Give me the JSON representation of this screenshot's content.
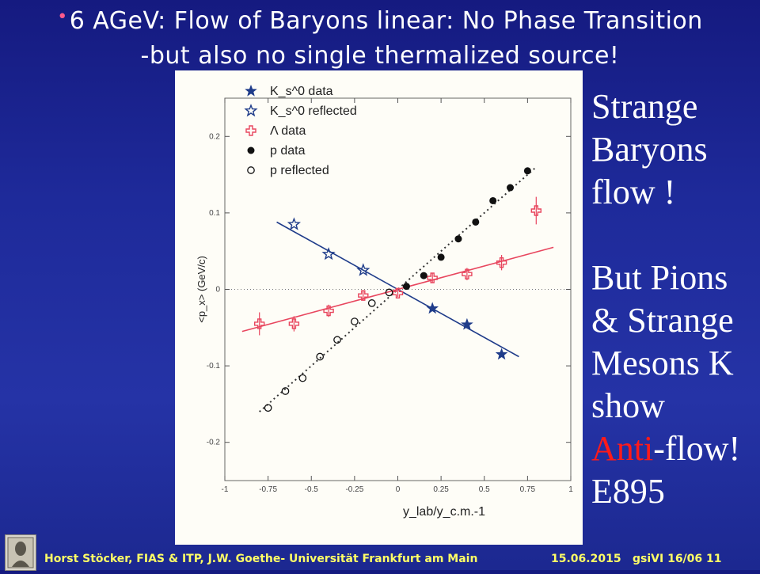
{
  "title": {
    "line1": "6 AGeV: Flow of Baryons linear: No Phase Transition",
    "line2": "-but also no single thermalized source!"
  },
  "side_text": {
    "l1": "Strange",
    "l2": "Baryons",
    "l3": "flow !",
    "l4": "But Pions",
    "l5": "& Strange",
    "l6": "Mesons K",
    "l7": "show",
    "l8_red": "Anti",
    "l8_rest": "-flow!",
    "l9": "E895"
  },
  "footer": {
    "author": "Horst Stöcker, FIAS & ITP, J.W. Goethe- Universität Frankfurt am Main",
    "date": "15.06.2015",
    "slide": "gsiVI 16/06  11"
  },
  "icons": {
    "logo": "goethe-portrait-icon",
    "bullet": "bullet-dot"
  },
  "colors": {
    "K0": "#1f3c8a",
    "Lambda": "#e8465e",
    "p": "#111111",
    "fit_p": "#333333"
  },
  "chart_data": {
    "type": "scatter",
    "xlabel": "y_lab/y_c.m.-1",
    "ylabel": "<p_x> (GeV/c)",
    "xlim": [
      -1,
      1
    ],
    "ylim": [
      -0.25,
      0.25
    ],
    "xticks": [
      -1,
      -0.75,
      -0.5,
      -0.25,
      0,
      0.25,
      0.5,
      0.75,
      1
    ],
    "xtick_labels": [
      "-1",
      "-0.75",
      "-0.5",
      "-0.25",
      "0",
      "0.25",
      "0.5",
      "0.75",
      "1"
    ],
    "yticks": [
      -0.2,
      -0.1,
      0,
      0.1,
      0.2
    ],
    "ytick_labels": [
      "-0.2",
      "-0.1",
      "0",
      "0.1",
      "0.2"
    ],
    "legend_position": "top-left",
    "series": [
      {
        "name": "K_s^0 data",
        "marker": "star-filled",
        "color": "#1f3c8a",
        "x": [
          0.2,
          0.4,
          0.6
        ],
        "y": [
          -0.025,
          -0.046,
          -0.085
        ]
      },
      {
        "name": "K_s^0 reflected",
        "marker": "star-open",
        "color": "#1f3c8a",
        "x": [
          -0.6,
          -0.4,
          -0.2
        ],
        "y": [
          0.085,
          0.046,
          0.025
        ]
      },
      {
        "name": "Λ data",
        "marker": "cross-open",
        "color": "#e8465e",
        "x": [
          -0.8,
          -0.6,
          -0.4,
          -0.2,
          0.0,
          0.2,
          0.4,
          0.6,
          0.8
        ],
        "y": [
          -0.045,
          -0.045,
          -0.028,
          -0.008,
          -0.005,
          0.015,
          0.02,
          0.035,
          0.103
        ],
        "yerr": [
          0.015,
          0.01,
          0.008,
          0.006,
          0.005,
          0.006,
          0.008,
          0.01,
          0.018
        ]
      },
      {
        "name": "p data",
        "marker": "circle-filled",
        "color": "#111111",
        "x": [
          0.05,
          0.15,
          0.25,
          0.35,
          0.45,
          0.55,
          0.65,
          0.75
        ],
        "y": [
          0.004,
          0.018,
          0.042,
          0.066,
          0.088,
          0.116,
          0.133,
          0.155
        ]
      },
      {
        "name": "p reflected",
        "marker": "circle-open",
        "color": "#111111",
        "x": [
          -0.05,
          -0.15,
          -0.25,
          -0.35,
          -0.45,
          -0.55,
          -0.65,
          -0.75
        ],
        "y": [
          -0.004,
          -0.018,
          -0.042,
          -0.066,
          -0.088,
          -0.116,
          -0.133,
          -0.155
        ]
      }
    ],
    "fits": [
      {
        "name": "K0 fit",
        "color": "#1f3c8a",
        "dash": "solid",
        "x": [
          -0.7,
          0.7
        ],
        "y": [
          0.088,
          -0.088
        ]
      },
      {
        "name": "Lambda fit",
        "color": "#e8465e",
        "dash": "solid",
        "x": [
          -0.9,
          0.9
        ],
        "y": [
          -0.055,
          0.055
        ]
      },
      {
        "name": "p fit",
        "color": "#333333",
        "dash": "dotted",
        "x": [
          -0.8,
          0.8
        ],
        "y": [
          -0.16,
          0.16
        ]
      }
    ]
  }
}
